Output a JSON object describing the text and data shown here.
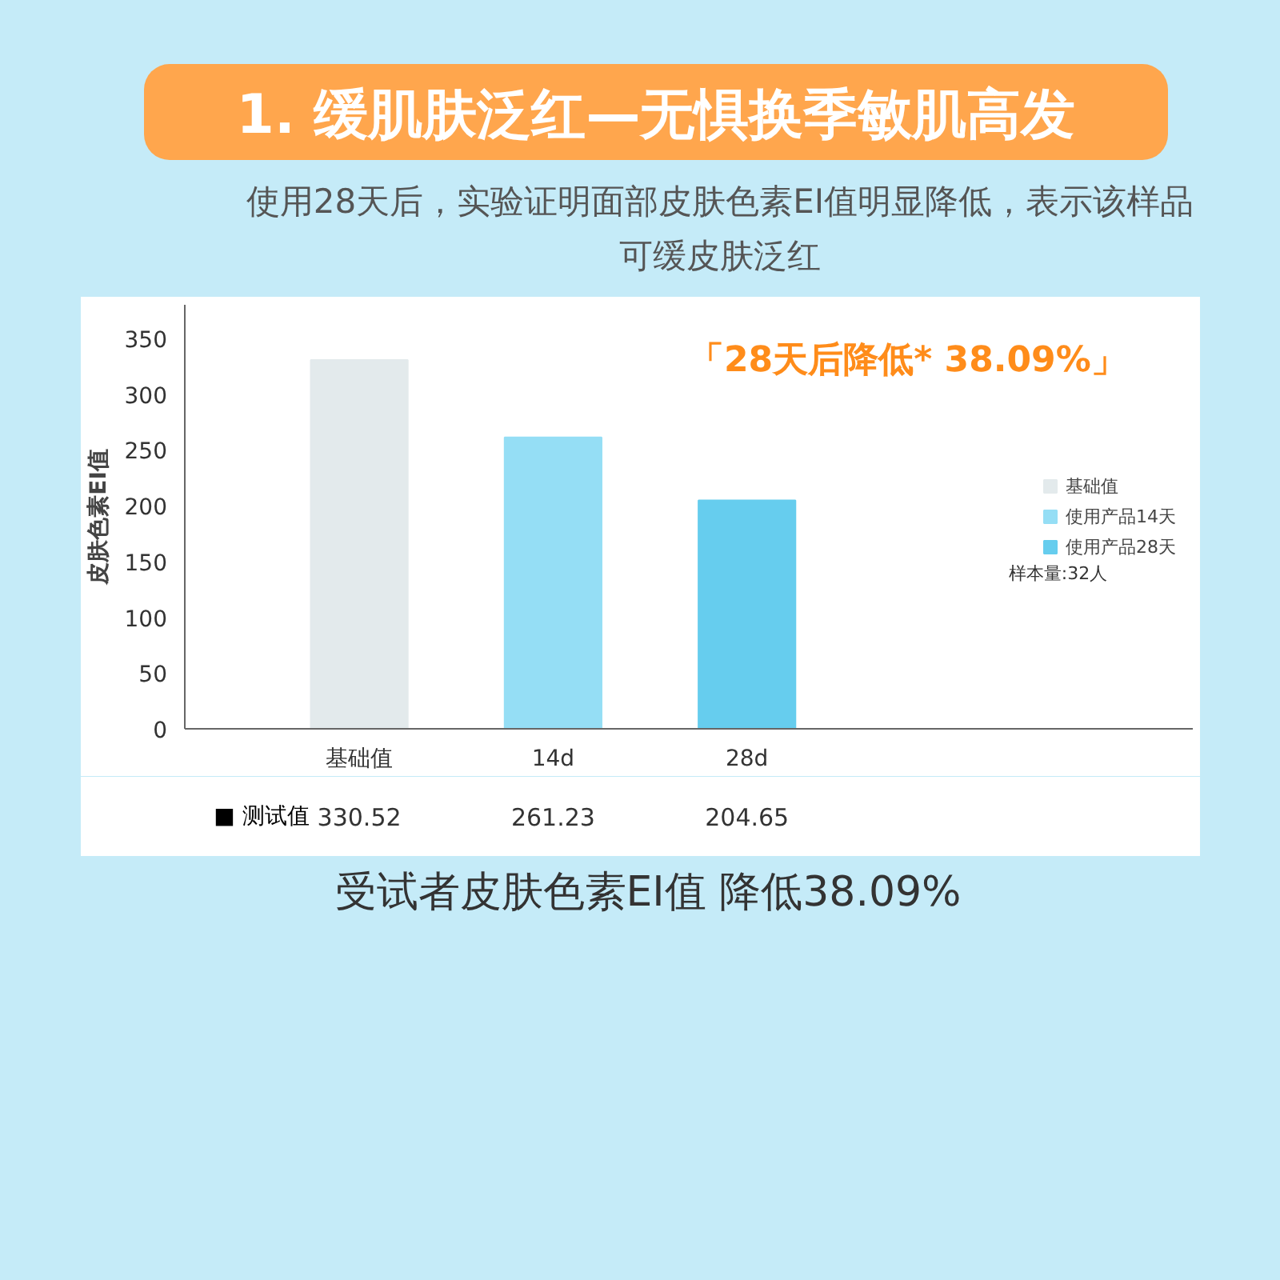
{
  "chart_data": {
    "type": "bar",
    "title": "1. 缓肌肤泛红—无惧换季敏肌高发",
    "subtitle": "使用28天后，实验证明面部皮肤色素EI值明显降低，表示该样品可缓皮肤泛红",
    "ylabel": "皮肤色素EI值",
    "categories": [
      "基础值",
      "14d",
      "28d"
    ],
    "series": [
      {
        "name": "基础值",
        "color": "#e3eaec",
        "values": [
          330.52,
          null,
          null
        ]
      },
      {
        "name": "使用产品14天",
        "color": "#95def5",
        "values": [
          null,
          261.23,
          null
        ]
      },
      {
        "name": "使用产品28天",
        "color": "#66cdee",
        "values": [
          null,
          null,
          204.65
        ]
      }
    ],
    "ylim": [
      0,
      380
    ],
    "yticks": [
      0,
      50,
      100,
      150,
      200,
      250,
      300,
      350
    ],
    "grid": false,
    "legend": "right",
    "data_labels": true,
    "annotations": [
      "「28天后降低* 38.09%」",
      "样本量:32人",
      "■ 测试值",
      "受试者皮肤色素EI值 降低38.09%"
    ]
  }
}
